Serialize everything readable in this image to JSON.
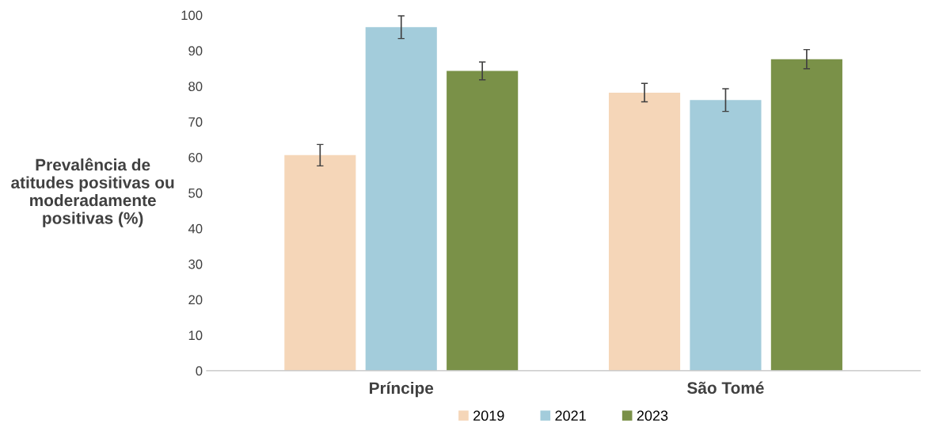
{
  "chart_data": {
    "type": "bar",
    "ylabel": "Prevalência de\natitudes positivas ou\nmoderadamente\npositivas (%)",
    "categories": [
      "Príncipe",
      "São Tomé"
    ],
    "series": [
      {
        "name": "2019",
        "color": "#f5d6b8",
        "values": [
          60.6,
          78.2
        ],
        "errors": [
          3,
          2.6
        ]
      },
      {
        "name": "2021",
        "color": "#a3ccdb",
        "values": [
          96.6,
          76.1
        ],
        "errors": [
          3.2,
          3.2
        ]
      },
      {
        "name": "2023",
        "color": "#7a9148",
        "values": [
          84.3,
          87.6
        ],
        "errors": [
          2.5,
          2.7
        ]
      }
    ],
    "ylim": [
      0,
      100
    ],
    "yticks": [
      0,
      10,
      20,
      30,
      40,
      50,
      60,
      70,
      80,
      90,
      100
    ],
    "grid": false,
    "legend": "bottom"
  }
}
